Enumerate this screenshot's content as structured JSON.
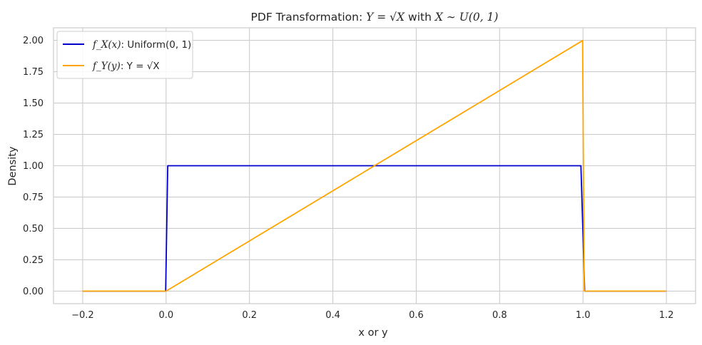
{
  "chart_data": {
    "type": "line",
    "title": {
      "prefix": "PDF Transformation: ",
      "math1": "Y = √X",
      "middle": " with ",
      "math2": "X ∼ U(0, 1)"
    },
    "xlabel": "x or y",
    "ylabel": "Density",
    "xlim": [
      -0.27,
      1.27
    ],
    "ylim": [
      -0.1,
      2.1
    ],
    "xticks": [
      -0.2,
      0.0,
      0.2,
      0.4,
      0.6,
      0.8,
      1.0,
      1.2
    ],
    "xtick_labels": [
      "−0.2",
      "0.0",
      "0.2",
      "0.4",
      "0.6",
      "0.8",
      "1.0",
      "1.2"
    ],
    "yticks": [
      0.0,
      0.25,
      0.5,
      0.75,
      1.0,
      1.25,
      1.5,
      1.75,
      2.0
    ],
    "ytick_labels": [
      "0.00",
      "0.25",
      "0.50",
      "0.75",
      "1.00",
      "1.25",
      "1.50",
      "1.75",
      "2.00"
    ],
    "grid": true,
    "legend_position": "top-left",
    "series": [
      {
        "legend_math": "f_X(x)",
        "legend_rest": ": Uniform(0, 1)",
        "color": "#0000cc",
        "x": [
          -0.2,
          -0.001,
          0.004,
          0.995,
          1.004,
          1.2
        ],
        "y": [
          0,
          0,
          1,
          1,
          0,
          0
        ]
      },
      {
        "legend_math": "f_Y(y)",
        "legend_rest": ": Y = √X",
        "color": "#ffa500",
        "x": [
          -0.2,
          0.0,
          0.999,
          1.003,
          1.2
        ],
        "y": [
          0,
          0,
          1.998,
          0,
          0
        ]
      }
    ]
  }
}
